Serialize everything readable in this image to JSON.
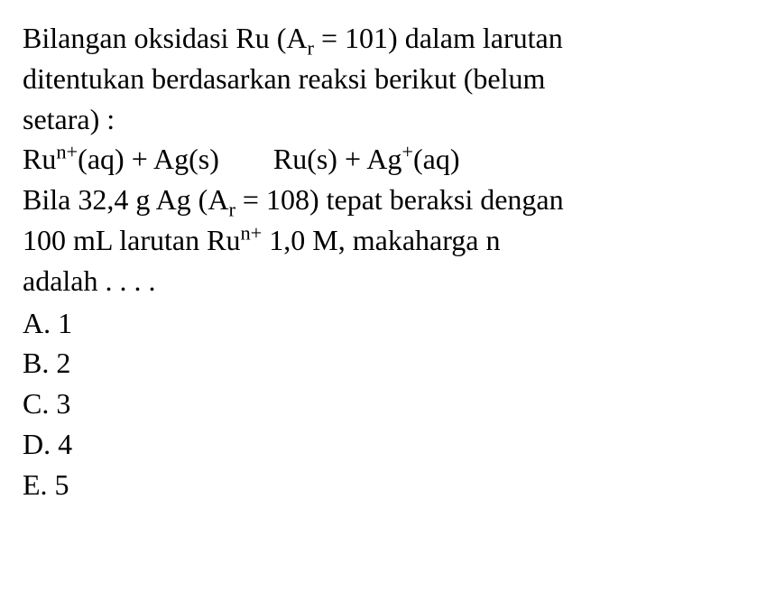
{
  "question": {
    "line1_part1": "Bilangan oksidasi Ru (A",
    "line1_sub": "r",
    "line1_part2": " = 101) dalam larutan",
    "line2": "ditentukan berdasarkan reaksi berikut (belum",
    "line3": "setara) :",
    "eq_left_part1": "Ru",
    "eq_left_sup1": "n+",
    "eq_left_part2": "(aq) + Ag(s)",
    "eq_right_part1": "Ru(s) + Ag",
    "eq_right_sup1": "+",
    "eq_right_part2": "(aq)",
    "line5_part1": "Bila 32,4 g Ag (A",
    "line5_sub": "r",
    "line5_part2": " = 108) tepat beraksi dengan",
    "line6_part1": "100 mL larutan Ru",
    "line6_sup": "n+",
    "line6_part2": " 1,0 M, makaharga n",
    "line7": "adalah . . . ."
  },
  "options": {
    "a": "A. 1",
    "b": "B. 2",
    "c": "C. 3",
    "d": "D. 4",
    "e": "E. 5"
  },
  "style": {
    "font_family": "Times New Roman",
    "font_size_pt": 24,
    "text_color": "#000000",
    "background_color": "#ffffff"
  }
}
